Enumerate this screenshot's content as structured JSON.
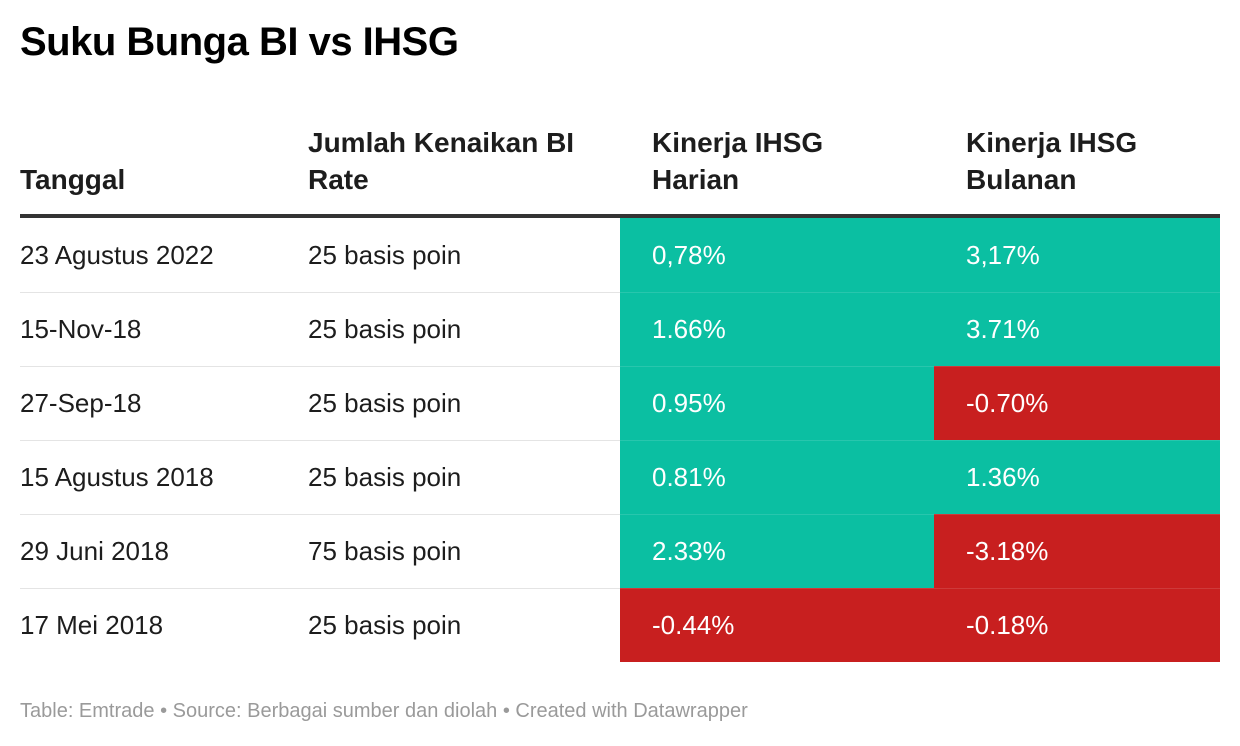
{
  "title": "Suku Bunga BI vs IHSG",
  "colors": {
    "positive": "#0bbfa2",
    "negative": "#c81f1f"
  },
  "chart_data": {
    "type": "table",
    "columns": [
      "Tanggal",
      "Jumlah Kenaikan BI Rate",
      "Kinerja IHSG Harian",
      "Kinerja IHSG Bulanan"
    ],
    "rows": [
      {
        "date": "23 Agustus 2022",
        "increase": "25 basis poin",
        "daily": "0,78%",
        "daily_value": 0.78,
        "monthly": "3,17%",
        "monthly_value": 3.17
      },
      {
        "date": "15-Nov-18",
        "increase": "25 basis poin",
        "daily": "1.66%",
        "daily_value": 1.66,
        "monthly": "3.71%",
        "monthly_value": 3.71
      },
      {
        "date": "27-Sep-18",
        "increase": "25 basis poin",
        "daily": "0.95%",
        "daily_value": 0.95,
        "monthly": "-0.70%",
        "monthly_value": -0.7
      },
      {
        "date": "15 Agustus 2018",
        "increase": "25 basis poin",
        "daily": "0.81%",
        "daily_value": 0.81,
        "monthly": "1.36%",
        "monthly_value": 1.36
      },
      {
        "date": "29 Juni 2018",
        "increase": "75 basis poin",
        "daily": "2.33%",
        "daily_value": 2.33,
        "monthly": "-3.18%",
        "monthly_value": -3.18
      },
      {
        "date": "17 Mei 2018",
        "increase": "25 basis poin",
        "daily": "-0.44%",
        "daily_value": -0.44,
        "monthly": "-0.18%",
        "monthly_value": -0.18
      }
    ]
  },
  "footer": "Table: Emtrade • Source: Berbagai sumber dan diolah • Created with Datawrapper"
}
